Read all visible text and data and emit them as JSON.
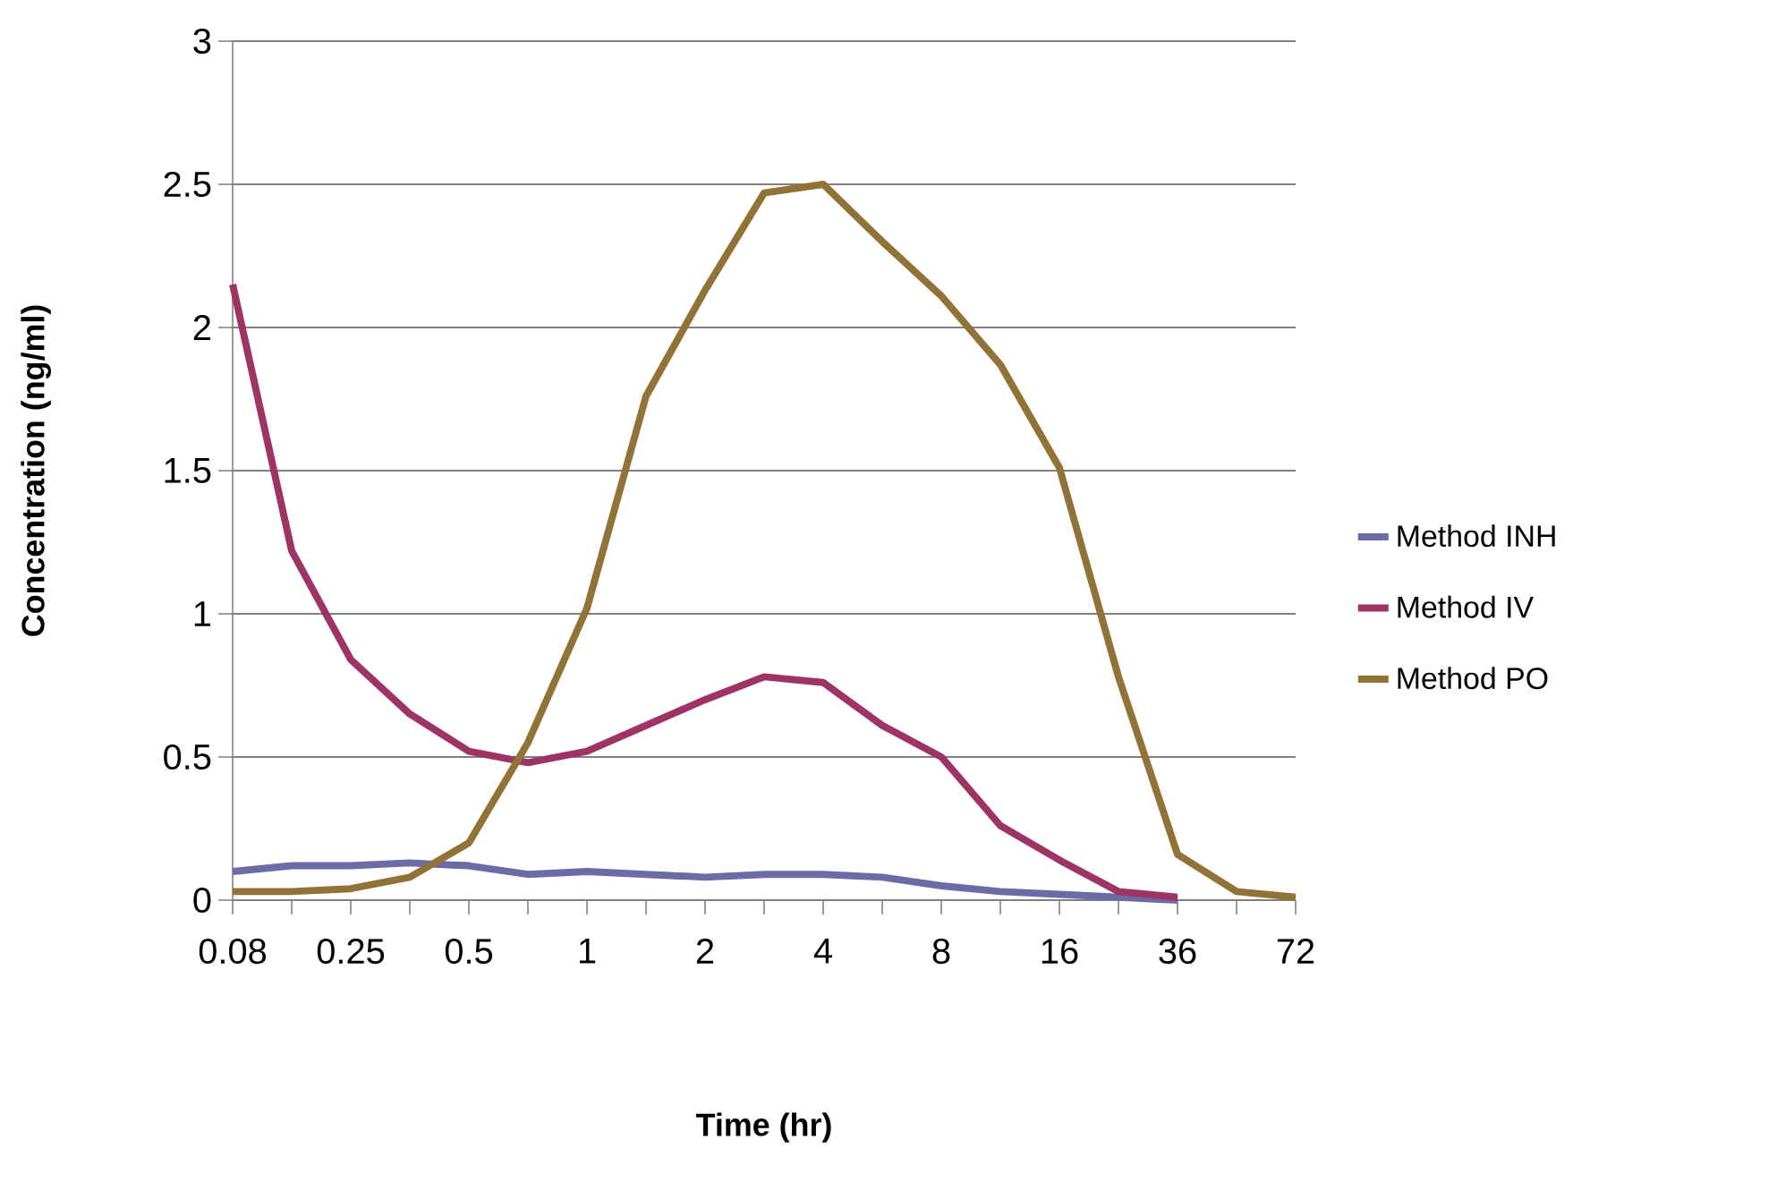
{
  "chart_data": {
    "type": "line",
    "xlabel": "Time (hr)",
    "ylabel": "Concentration (ng/ml)",
    "categories": [
      "0.08",
      null,
      "0.25",
      null,
      "0.5",
      null,
      "1",
      null,
      "2",
      null,
      "4",
      null,
      "8",
      null,
      "16",
      null,
      "36",
      null,
      "72"
    ],
    "series": [
      {
        "name": "Method INH",
        "color": "#6b6ba6",
        "values": [
          0.1,
          0.12,
          0.12,
          0.13,
          0.12,
          0.09,
          0.1,
          0.09,
          0.08,
          0.09,
          0.09,
          0.08,
          0.05,
          0.03,
          0.02,
          0.01,
          0.0,
          null,
          null
        ]
      },
      {
        "name": "Method IV",
        "color": "#9e3466",
        "values": [
          2.15,
          1.22,
          0.84,
          0.65,
          0.52,
          0.48,
          0.52,
          0.61,
          0.7,
          0.78,
          0.76,
          0.61,
          0.5,
          0.26,
          0.14,
          0.03,
          0.01,
          null,
          null
        ]
      },
      {
        "name": "Method PO",
        "color": "#917338",
        "values": [
          0.03,
          0.03,
          0.04,
          0.08,
          0.2,
          0.55,
          1.02,
          1.76,
          2.13,
          2.47,
          2.5,
          2.3,
          2.11,
          1.87,
          1.51,
          0.78,
          0.16,
          0.03,
          0.01
        ]
      }
    ],
    "ylim": [
      0,
      3
    ],
    "yticks": [
      0,
      0.5,
      1,
      1.5,
      2,
      2.5,
      3
    ],
    "grid": "y",
    "legend": "right"
  }
}
